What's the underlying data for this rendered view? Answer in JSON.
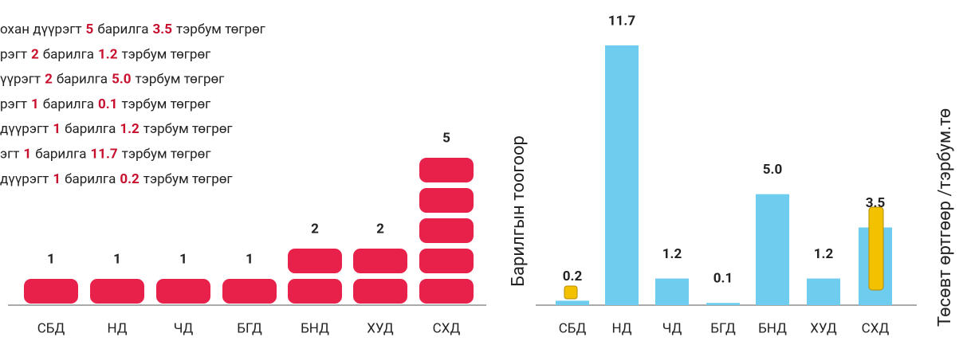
{
  "summary": {
    "count_word": "барилга",
    "unit_word": "тэрбум төгрөг",
    "lines": [
      {
        "prefix": "охан дүүрэгт",
        "count": 5,
        "amount": "3.5"
      },
      {
        "prefix": "рэгт",
        "count": 2,
        "amount": "1.2"
      },
      {
        "prefix": "үүрэгт",
        "count": 2,
        "amount": "5.0"
      },
      {
        "prefix": "рэгт",
        "count": 1,
        "amount": "0.1"
      },
      {
        "prefix": "дүүрэгт",
        "count": 1,
        "amount": "1.2"
      },
      {
        "prefix": "эгт",
        "count": 1,
        "amount": "11.7"
      },
      {
        "prefix": "дүүрэгт",
        "count": 1,
        "amount": "0.2"
      }
    ]
  },
  "chart_data": [
    {
      "type": "unit",
      "y_label": "Барилгын тоогоор",
      "categories": [
        "СБД",
        "НД",
        "ЧД",
        "БГД",
        "БНД",
        "ХУД",
        "СХД"
      ],
      "values": [
        1,
        1,
        1,
        1,
        2,
        2,
        5
      ],
      "color": "#e8214b"
    },
    {
      "type": "bar",
      "y_label": "Төсөвт өртгөөр /тэрбум.тө",
      "categories": [
        "СБД",
        "НД",
        "ЧД",
        "БГД",
        "БНД",
        "ХУД",
        "СХД"
      ],
      "values": [
        0.2,
        11.7,
        1.2,
        0.1,
        5.0,
        1.2,
        3.5
      ],
      "value_labels": [
        "0.2",
        "11.7",
        "1.2",
        "0.1",
        "5.0",
        "1.2",
        "3.5"
      ],
      "color": "#6ecdee"
    }
  ]
}
